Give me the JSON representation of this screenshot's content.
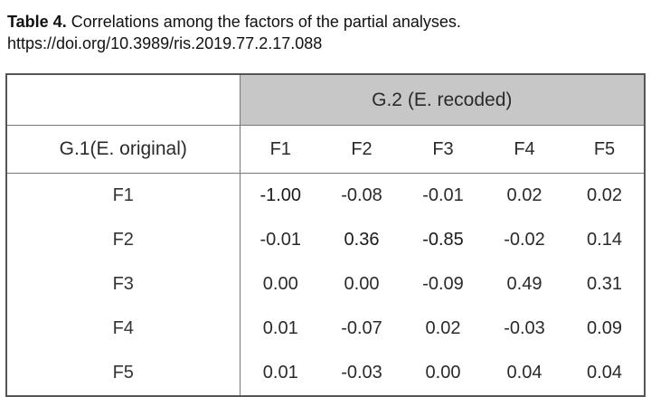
{
  "caption": {
    "label": "Table 4.",
    "text": " Correlations among the factors of the partial analyses.",
    "doi": "https://doi.org/10.3989/ris.2019.77.2.17.088"
  },
  "table": {
    "group_header": "G.2 (E. recoded)",
    "stub_header": "G.1(E. original)",
    "columns": [
      "F1",
      "F2",
      "F3",
      "F4",
      "F5"
    ],
    "rows": [
      {
        "label": "F1",
        "values": [
          "-1.00",
          "-0.08",
          "-0.01",
          "0.02",
          "0.02"
        ],
        "bold": [
          true,
          false,
          false,
          false,
          false
        ]
      },
      {
        "label": "F2",
        "values": [
          "-0.01",
          "0.36",
          "-0.85",
          "-0.02",
          "0.14"
        ],
        "bold": [
          false,
          true,
          true,
          false,
          false
        ]
      },
      {
        "label": "F3",
        "values": [
          "0.00",
          "0.00",
          "-0.09",
          "0.49",
          "0.31"
        ],
        "bold": [
          false,
          false,
          false,
          false,
          false
        ]
      },
      {
        "label": "F4",
        "values": [
          "0.01",
          "-0.07",
          "0.02",
          "-0.03",
          "0.09"
        ],
        "bold": [
          false,
          false,
          false,
          false,
          false
        ]
      },
      {
        "label": "F5",
        "values": [
          "0.01",
          "-0.03",
          "0.00",
          "0.04",
          "0.04"
        ],
        "bold": [
          false,
          false,
          false,
          false,
          false
        ]
      }
    ]
  }
}
